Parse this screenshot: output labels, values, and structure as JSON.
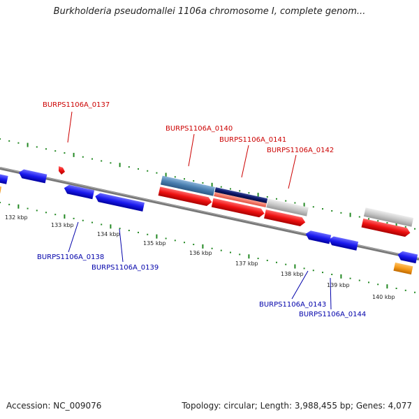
{
  "title": "Burkholderia pseudomallei 1106a chromosome I, complete genom...",
  "footer": {
    "accession": "Accession: NC_009076",
    "summary": "Topology: circular; Length: 3,988,455 bp; Genes: 4,077"
  },
  "ruler": {
    "ticks": [
      "132 kbp",
      "133 kbp",
      "134 kbp",
      "135 kbp",
      "136 kbp",
      "137 kbp",
      "138 kbp",
      "139 kbp",
      "140 kbp"
    ]
  },
  "gene_labels": {
    "forward": [
      "BURPS1106A_0137",
      "BURPS1106A_0140",
      "BURPS1106A_0141",
      "BURPS1106A_0142"
    ],
    "reverse": [
      "BURPS1106A_0138",
      "BURPS1106A_0139",
      "BURPS1106A_0143",
      "BURPS1106A_0144"
    ]
  },
  "colors": {
    "forward_label": "#cc0000",
    "reverse_label": "#0000aa",
    "cds": "#ee1111",
    "gene_blue": "#1a1aee",
    "steel": "#4a7fb0",
    "navy": "#0a1566",
    "salmon": "#f07060",
    "grey": "#c8c8c8",
    "orange": "#f59a1a",
    "tick": "#228822",
    "backbone": "#777777"
  }
}
